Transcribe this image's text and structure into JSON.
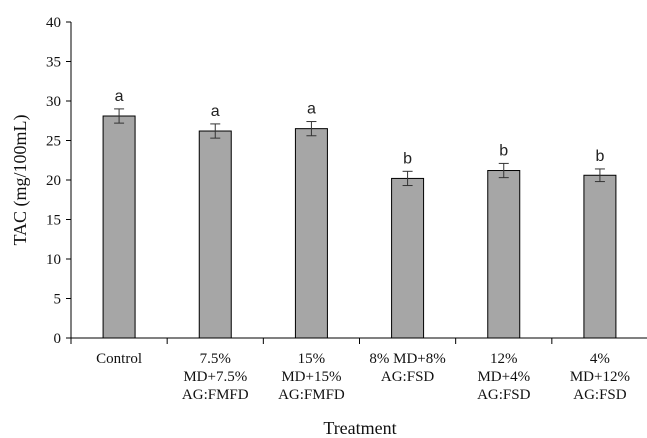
{
  "chart_data": {
    "type": "bar",
    "title": "",
    "xlabel": "Treatment",
    "ylabel": "TAC (mg/100mL)",
    "ylim": [
      0,
      40
    ],
    "yticks": [
      0,
      5,
      10,
      15,
      20,
      25,
      30,
      35,
      40
    ],
    "grid": false,
    "legend": "none",
    "categories": [
      [
        "Control"
      ],
      [
        "7.5%",
        "MD+7.5%",
        "AG:FMFD"
      ],
      [
        "15%",
        "MD+15%",
        "AG:FMFD"
      ],
      [
        "8% MD+8%",
        "AG:FSD"
      ],
      [
        "12%",
        "MD+4%",
        "AG:FSD"
      ],
      [
        "4%",
        "MD+12%",
        "AG:FSD"
      ]
    ],
    "values": [
      28.1,
      26.2,
      26.5,
      20.2,
      21.2,
      20.6
    ],
    "errors": [
      0.9,
      0.9,
      0.9,
      0.9,
      0.9,
      0.8
    ],
    "significance": [
      "a",
      "a",
      "a",
      "b",
      "b",
      "b"
    ],
    "colors": {
      "bar_fill": "#a6a6a6",
      "bar_stroke": "#000000",
      "axis": "#000000"
    }
  }
}
